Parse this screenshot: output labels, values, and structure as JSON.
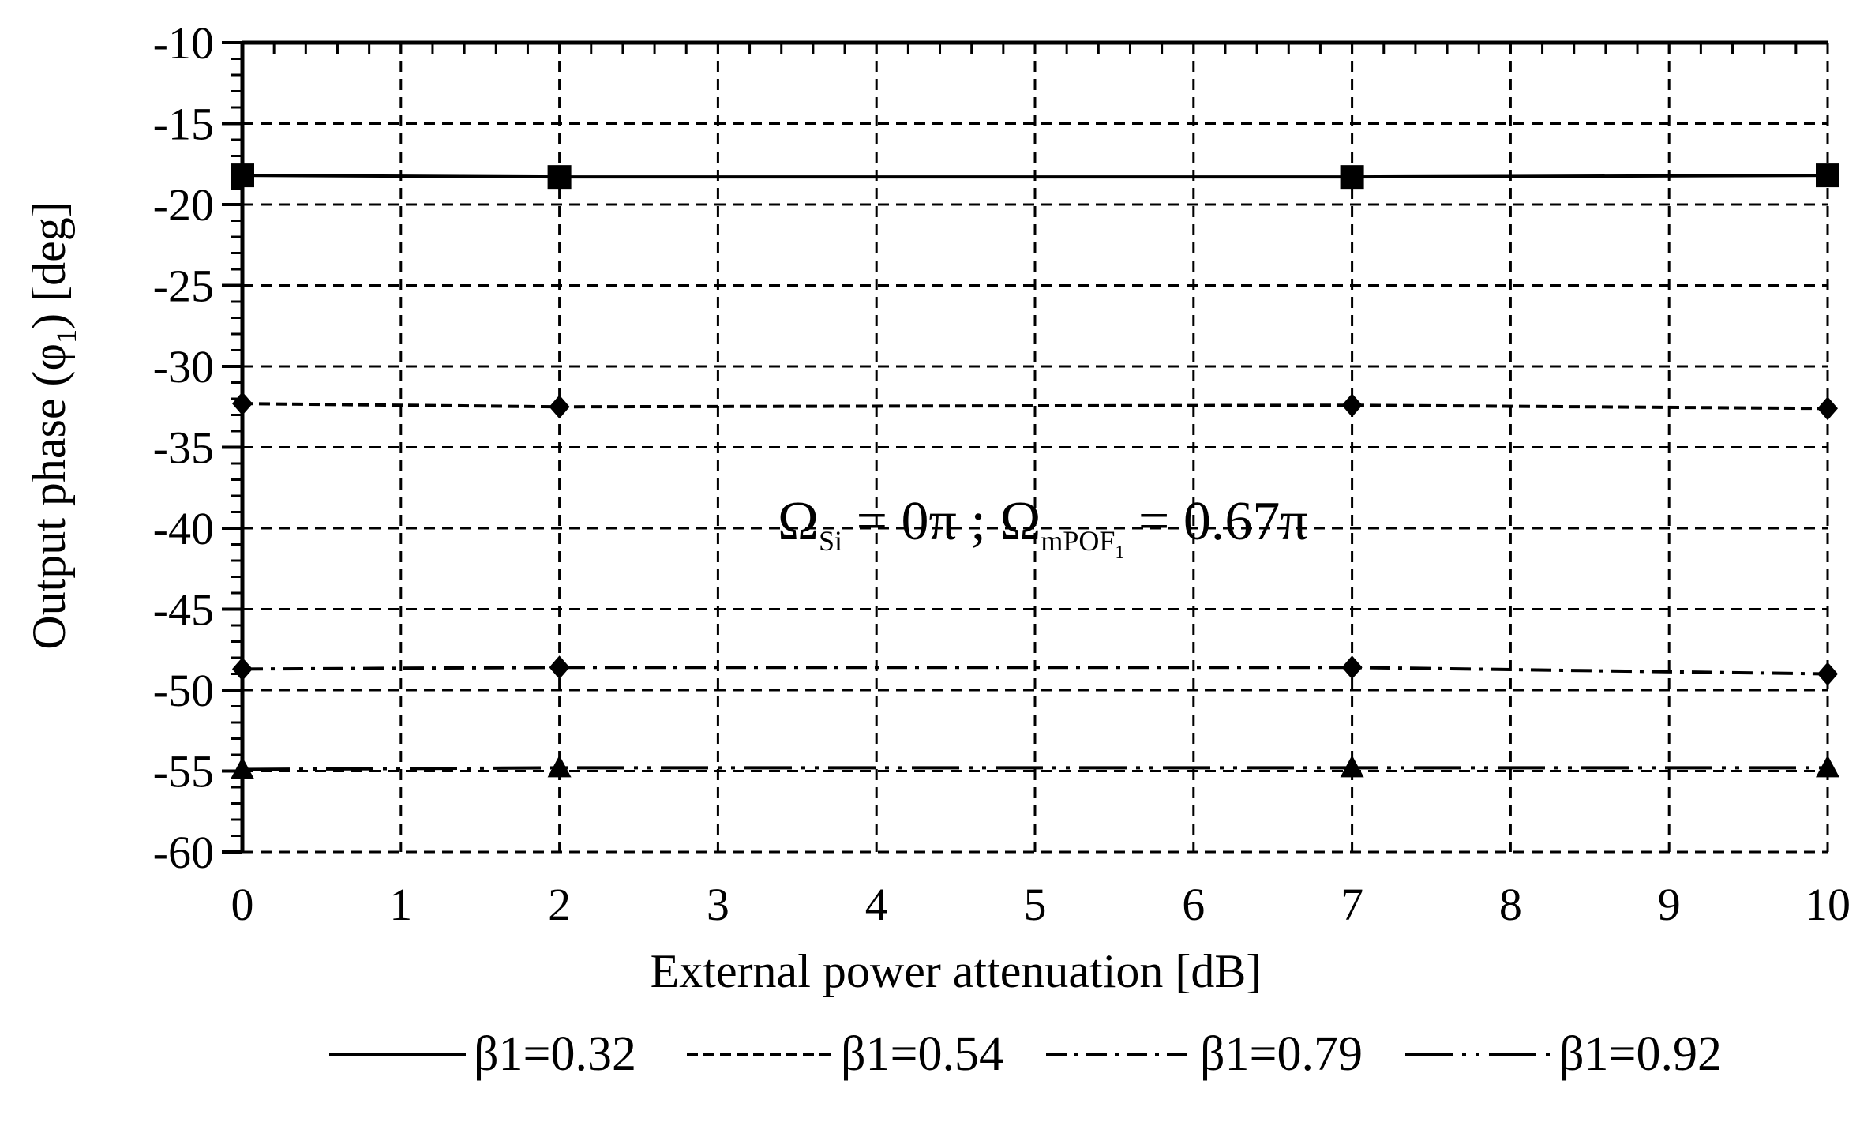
{
  "chart_data": {
    "type": "line",
    "title": "",
    "xlabel": "External power attenuation [dB]",
    "ylabel": {
      "pre": "Output phase (φ",
      "sub": "1",
      "post": ") [deg]"
    },
    "xlim": [
      0,
      10
    ],
    "ylim": [
      -60,
      -10
    ],
    "x_ticks": [
      "0",
      "1",
      "2",
      "3",
      "4",
      "5",
      "6",
      "7",
      "8",
      "9",
      "10"
    ],
    "y_ticks": [
      "-10",
      "-15",
      "-20",
      "-25",
      "-30",
      "-35",
      "-40",
      "-45",
      "-50",
      "-55",
      "-60"
    ],
    "grid": true,
    "legend_position": "bottom",
    "x": [
      0,
      2,
      7,
      10
    ],
    "series": [
      {
        "name": "β1=0.32",
        "values": [
          -18.2,
          -18.3,
          -18.3,
          -18.2
        ],
        "line": "solid",
        "marker": "square"
      },
      {
        "name": "β1=0.54",
        "values": [
          -32.3,
          -32.5,
          -32.4,
          -32.6
        ],
        "line": "dashed",
        "marker": "diamond"
      },
      {
        "name": "β1=0.79",
        "values": [
          -48.7,
          -48.6,
          -48.6,
          -49.0
        ],
        "line": "dash-dot",
        "marker": "diamond"
      },
      {
        "name": "β1=0.92",
        "values": [
          -54.9,
          -54.8,
          -54.8,
          -54.8
        ],
        "line": "dash-dot-dot",
        "marker": "triangle"
      }
    ],
    "annotation": {
      "omega1": "Ω",
      "sub1": "Si",
      "mid": " = 0π ; Ω",
      "sub2": "mPOF",
      "sub2sub": "1",
      "tail": " = 0.67π"
    }
  }
}
